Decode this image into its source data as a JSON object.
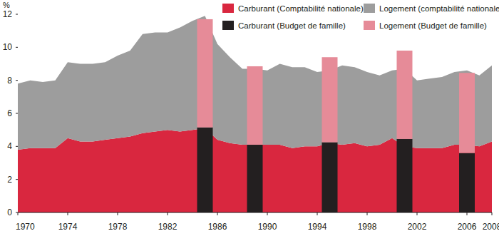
{
  "chart_data": {
    "type": "area",
    "y_label": "%",
    "x": [
      1970,
      1971,
      1972,
      1973,
      1974,
      1975,
      1976,
      1977,
      1978,
      1979,
      1980,
      1981,
      1982,
      1983,
      1984,
      1985,
      1986,
      1987,
      1988,
      1989,
      1990,
      1991,
      1992,
      1993,
      1994,
      1995,
      1996,
      1997,
      1998,
      1999,
      2000,
      2001,
      2002,
      2003,
      2004,
      2005,
      2006,
      2007,
      2008
    ],
    "series": [
      {
        "name": "Carburant (Comptabilité nationale)",
        "type": "area",
        "color": "#d9273f",
        "values": [
          3.8,
          3.9,
          3.9,
          3.9,
          4.5,
          4.3,
          4.3,
          4.4,
          4.5,
          4.6,
          4.8,
          4.9,
          5.0,
          4.9,
          5.0,
          5.1,
          4.4,
          4.2,
          4.1,
          4.1,
          4.1,
          4.1,
          3.9,
          4.0,
          4.0,
          4.2,
          4.1,
          4.2,
          4.0,
          4.1,
          4.5,
          4.0,
          3.9,
          3.9,
          3.9,
          4.1,
          4.1,
          4.0,
          4.3
        ]
      },
      {
        "name": "Logement (comptabilité nationale)",
        "type": "area",
        "color": "#9d9d9d",
        "values": [
          4.0,
          4.1,
          4.0,
          4.1,
          4.6,
          4.7,
          4.7,
          4.7,
          5.0,
          5.2,
          6.0,
          6.0,
          5.9,
          6.3,
          6.6,
          6.8,
          5.8,
          5.2,
          4.6,
          4.6,
          4.5,
          4.9,
          4.9,
          4.8,
          4.5,
          4.4,
          4.8,
          4.6,
          4.5,
          4.2,
          4.1,
          4.7,
          4.1,
          4.2,
          4.3,
          4.4,
          4.5,
          4.3,
          4.6
        ]
      },
      {
        "name": "Carburant (Budget de famille)",
        "type": "bar",
        "color": "#231f20",
        "x": [
          1985,
          1989,
          1995,
          2001,
          2006
        ],
        "values": [
          5.15,
          4.1,
          4.25,
          4.45,
          3.6
        ]
      },
      {
        "name": "Logement (Budget de famille)",
        "type": "bar",
        "color": "#e68b98",
        "x": [
          1985,
          1989,
          1995,
          2001,
          2006
        ],
        "values": [
          6.55,
          4.75,
          5.15,
          5.35,
          4.85
        ]
      }
    ],
    "stacked": true,
    "legend": "top-right",
    "grid": false,
    "xlim": [
      1970,
      2008
    ],
    "xticks": [
      1970,
      1974,
      1978,
      1982,
      1986,
      1990,
      1994,
      1998,
      2002,
      2006,
      2008
    ],
    "ylim": [
      0,
      12
    ],
    "yticks": [
      0,
      2,
      4,
      6,
      8,
      10,
      12
    ]
  }
}
